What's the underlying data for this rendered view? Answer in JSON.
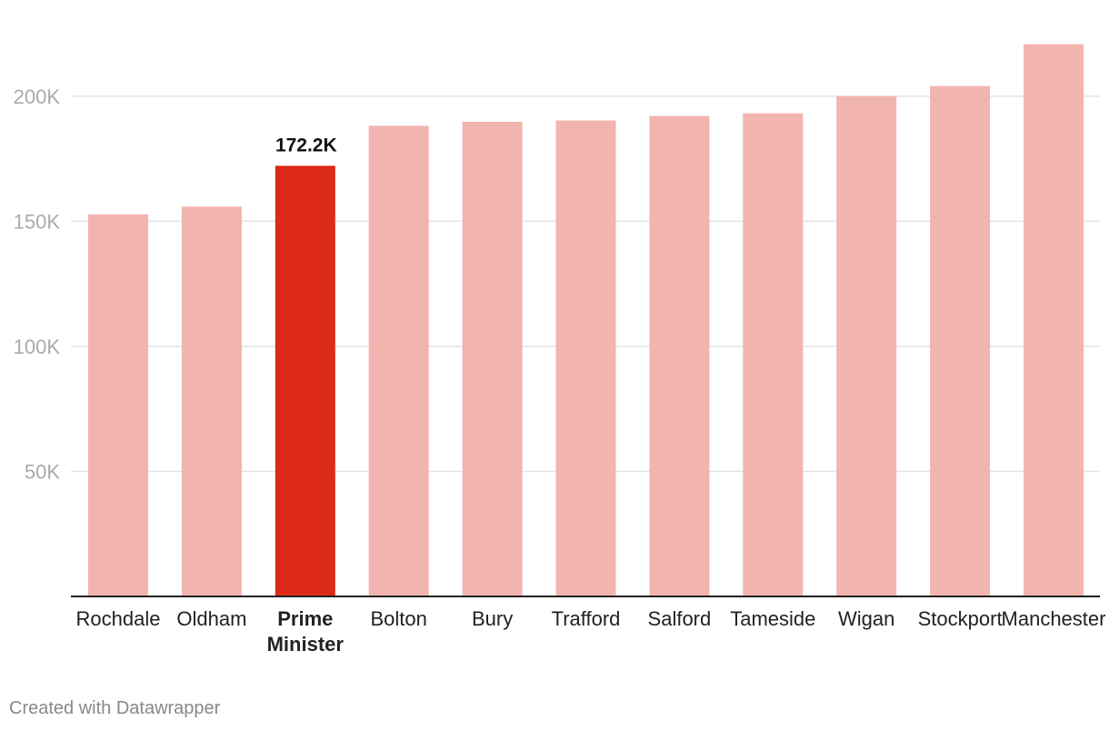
{
  "chart_data": {
    "type": "bar",
    "categories": [
      "Rochdale",
      "Oldham",
      "Prime Minister",
      "Bolton",
      "Bury",
      "Trafford",
      "Salford",
      "Tameside",
      "Wigan",
      "Stockport",
      "Manchester"
    ],
    "category_lines": [
      [
        "Rochdale"
      ],
      [
        "Oldham"
      ],
      [
        "Prime",
        "Minister"
      ],
      [
        "Bolton"
      ],
      [
        "Bury"
      ],
      [
        "Trafford"
      ],
      [
        "Salford"
      ],
      [
        "Tameside"
      ],
      [
        "Wigan"
      ],
      [
        "Stockport"
      ],
      [
        "Manchester"
      ]
    ],
    "values": [
      152800,
      155900,
      172200,
      188200,
      189800,
      190300,
      192100,
      193200,
      200000,
      204100,
      220800
    ],
    "highlight_index": 2,
    "data_labels": [
      {
        "index": 2,
        "text": "172.2K"
      }
    ],
    "y_ticks": [
      {
        "value": 50000,
        "label": "50K"
      },
      {
        "value": 100000,
        "label": "100K"
      },
      {
        "value": 150000,
        "label": "150K"
      },
      {
        "value": 200000,
        "label": "200K"
      }
    ],
    "ylim": [
      0,
      228000
    ],
    "grid": true,
    "title": "",
    "xlabel": "",
    "ylabel": "",
    "colors": {
      "bar": "#f2b4af",
      "highlight": "#dd2a18",
      "grid": "#e3e3e3",
      "axis": "#222222"
    }
  },
  "footer": {
    "credit": "Created with Datawrapper"
  }
}
